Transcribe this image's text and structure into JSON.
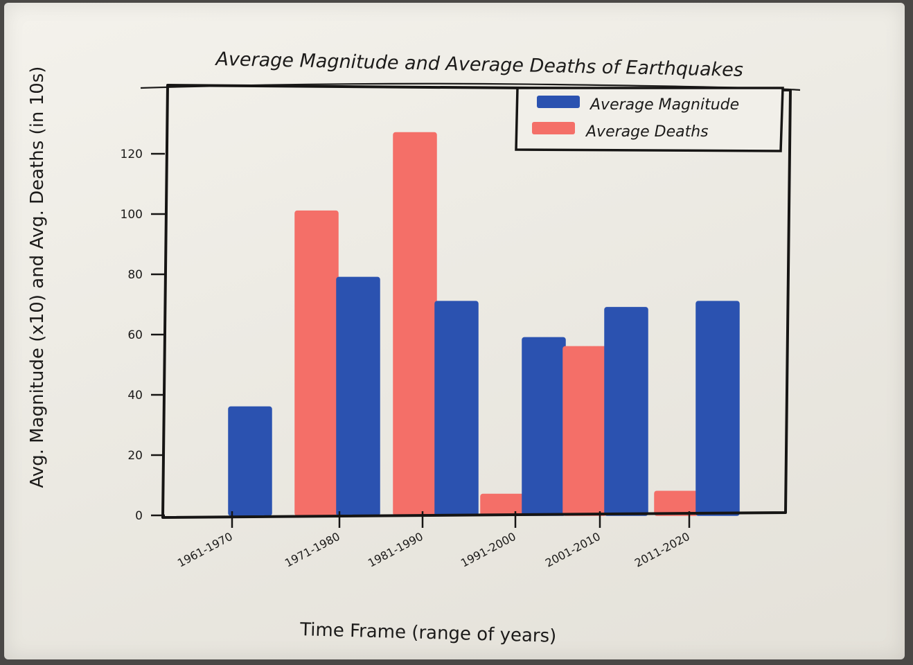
{
  "chart_data": {
    "type": "bar",
    "title": "Average Magnitude and Average Deaths of Earthquakes",
    "xlabel": "Time Frame (range of years)",
    "ylabel": "Avg. Magnitude (x10) and Avg. Deaths (in 10s)",
    "categories": [
      "1961-1970",
      "1971-1980",
      "1981-1990",
      "1991-2000",
      "2001-2010",
      "2011-2020"
    ],
    "series": [
      {
        "name": "Average Deaths",
        "color": "#f46f68",
        "values": [
          0,
          101,
          127,
          7,
          56,
          8
        ]
      },
      {
        "name": "Average Magnitude",
        "color": "#2b52b0",
        "values": [
          36,
          79,
          71,
          59,
          69,
          71
        ]
      }
    ],
    "ylim": [
      0,
      130
    ],
    "yticks": [
      0,
      20,
      40,
      60,
      80,
      100,
      120
    ],
    "ytick_labels": [
      "0",
      "20",
      "40",
      "60",
      "80",
      "100",
      "120"
    ],
    "legend": {
      "placement": "top-right",
      "entries": [
        {
          "label": "Average Magnitude",
          "color": "#2b52b0"
        },
        {
          "label": "Average Deaths",
          "color": "#f46f68"
        }
      ]
    },
    "grid": false
  }
}
